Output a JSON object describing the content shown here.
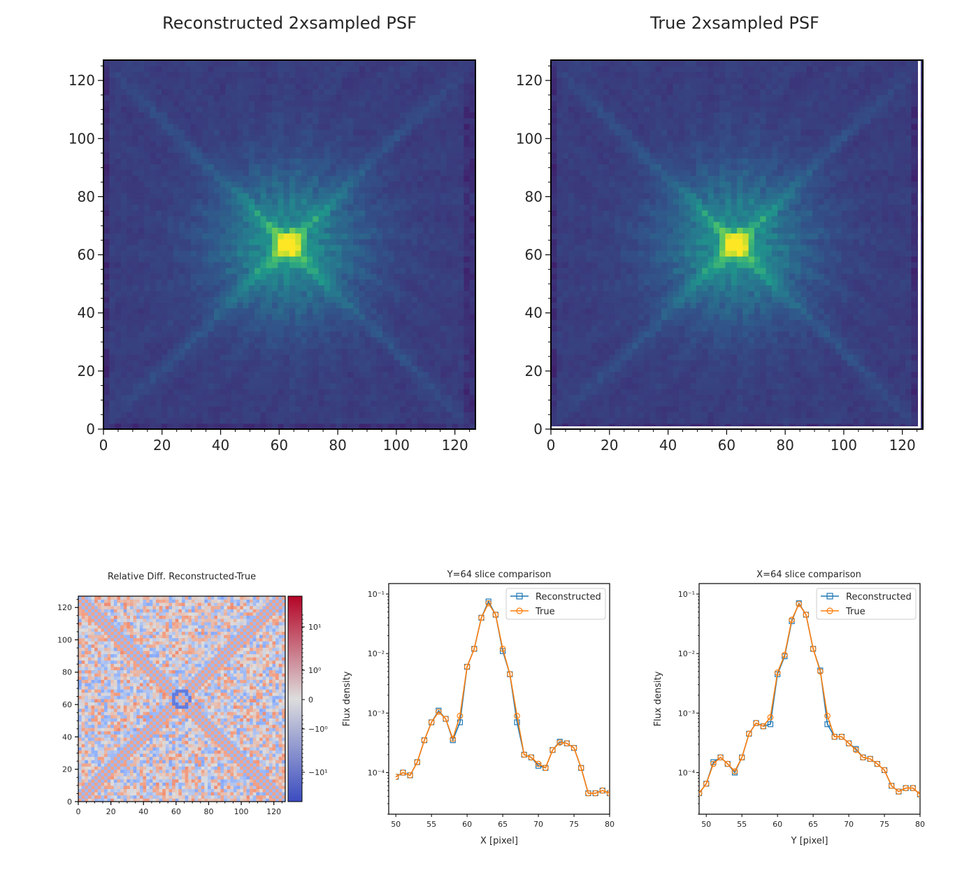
{
  "colors": {
    "viridis_dark": "#3b2a68",
    "viridis_mid": "#2a8a8a",
    "viridis_peak": "#fde725",
    "coolwarm_blue": "#3b4cc0",
    "coolwarm_white": "#dddddd",
    "coolwarm_red": "#b40426",
    "series_reconstructed": "#1f77b4",
    "series_true": "#ff7f0e"
  },
  "chart_data": [
    {
      "type": "heatmap",
      "title": "Reconstructed 2xsampled PSF",
      "colormap": "viridis",
      "xlim": [
        0,
        127
      ],
      "ylim": [
        0,
        127
      ],
      "xticks": [
        "0",
        "20",
        "40",
        "60",
        "80",
        "100",
        "120"
      ],
      "yticks": [
        "0",
        "20",
        "40",
        "60",
        "80",
        "100",
        "120"
      ],
      "peak": [
        63,
        64
      ]
    },
    {
      "type": "heatmap",
      "title": "True 2xsampled PSF",
      "colormap": "viridis",
      "xlim": [
        0,
        127
      ],
      "ylim": [
        0,
        127
      ],
      "xticks": [
        "0",
        "20",
        "40",
        "60",
        "80",
        "100",
        "120"
      ],
      "yticks": [
        "0",
        "20",
        "40",
        "60",
        "80",
        "100",
        "120"
      ],
      "peak": [
        63,
        64
      ]
    },
    {
      "type": "heatmap",
      "title": "Relative Diff. Reconstructed-True",
      "colormap": "coolwarm",
      "xlim": [
        0,
        127
      ],
      "ylim": [
        0,
        127
      ],
      "xticks": [
        "0",
        "20",
        "40",
        "60",
        "80",
        "100",
        "120"
      ],
      "yticks": [
        "0",
        "20",
        "40",
        "60",
        "80",
        "100",
        "120"
      ],
      "colorbar_ticks": [
        "10¹",
        "10⁰",
        "0",
        "−10⁰",
        "−10¹"
      ]
    },
    {
      "type": "line",
      "title": "Y=64 slice comparison",
      "xlabel": "X [pixel]",
      "ylabel": "Flux density",
      "yscale": "log",
      "xlim": [
        49,
        80
      ],
      "ylim": [
        2e-05,
        0.15
      ],
      "xticks": [
        "50",
        "55",
        "60",
        "65",
        "70",
        "75",
        "80"
      ],
      "yticks": [
        "10⁻⁴",
        "10⁻³",
        "10⁻²",
        "10⁻¹"
      ],
      "legend": "top-right",
      "x": [
        49,
        50,
        51,
        52,
        53,
        54,
        55,
        56,
        57,
        58,
        59,
        60,
        61,
        62,
        63,
        64,
        65,
        66,
        67,
        68,
        69,
        70,
        71,
        72,
        73,
        74,
        75,
        76,
        77,
        78,
        79,
        80
      ],
      "series": [
        {
          "name": "Reconstructed",
          "values": [
            8e-05,
            8.5e-05,
            0.0001,
            9e-05,
            0.00015,
            0.00035,
            0.0007,
            0.0011,
            0.0008,
            0.00035,
            0.0007,
            0.006,
            0.012,
            0.04,
            0.075,
            0.045,
            0.011,
            0.0045,
            0.0007,
            0.0002,
            0.00018,
            0.00013,
            0.00012,
            0.00024,
            0.00033,
            0.00031,
            0.00026,
            0.00012,
            4.5e-05,
            4.5e-05,
            5e-05,
            4.5e-05
          ]
        },
        {
          "name": "True",
          "values": [
            8e-05,
            8.5e-05,
            0.0001,
            9e-05,
            0.00015,
            0.00035,
            0.0007,
            0.00105,
            0.0008,
            0.00037,
            0.0009,
            0.006,
            0.012,
            0.04,
            0.07,
            0.045,
            0.012,
            0.0045,
            0.0009,
            0.0002,
            0.00018,
            0.00014,
            0.00012,
            0.00024,
            0.00032,
            0.00031,
            0.00026,
            0.00012,
            4.5e-05,
            4.5e-05,
            5e-05,
            4.5e-05
          ]
        }
      ]
    },
    {
      "type": "line",
      "title": "X=64 slice comparison",
      "xlabel": "Y [pixel]",
      "ylabel": "Flux density",
      "yscale": "log",
      "xlim": [
        49,
        80
      ],
      "ylim": [
        2e-05,
        0.15
      ],
      "xticks": [
        "50",
        "55",
        "60",
        "65",
        "70",
        "75",
        "80"
      ],
      "yticks": [
        "10⁻⁴",
        "10⁻³",
        "10⁻²",
        "10⁻¹"
      ],
      "legend": "top-right",
      "x": [
        49,
        50,
        51,
        52,
        53,
        54,
        55,
        56,
        57,
        58,
        59,
        60,
        61,
        62,
        63,
        64,
        65,
        66,
        67,
        68,
        69,
        70,
        71,
        72,
        73,
        74,
        75,
        76,
        77,
        78,
        79,
        80
      ],
      "series": [
        {
          "name": "Reconstructed",
          "values": [
            4.5e-05,
            6.5e-05,
            0.00015,
            0.00018,
            0.00014,
            0.0001,
            0.00018,
            0.00045,
            0.00068,
            0.0006,
            0.00065,
            0.0045,
            0.009,
            0.035,
            0.07,
            0.045,
            0.012,
            0.0052,
            0.00065,
            0.0004,
            0.0004,
            0.00031,
            0.00025,
            0.00018,
            0.00017,
            0.00014,
            0.00011,
            6e-05,
            4.8e-05,
            5.5e-05,
            5.5e-05,
            4.3e-05
          ]
        },
        {
          "name": "True",
          "values": [
            4.5e-05,
            6.5e-05,
            0.00014,
            0.00018,
            0.00014,
            0.000105,
            0.00018,
            0.00045,
            0.00068,
            0.0006,
            0.00085,
            0.0048,
            0.0095,
            0.037,
            0.068,
            0.045,
            0.012,
            0.005,
            0.0009,
            0.0004,
            0.0004,
            0.00031,
            0.00024,
            0.00018,
            0.00017,
            0.00014,
            0.00011,
            6e-05,
            4.8e-05,
            5.5e-05,
            5.5e-05,
            4.3e-05
          ]
        }
      ]
    }
  ]
}
